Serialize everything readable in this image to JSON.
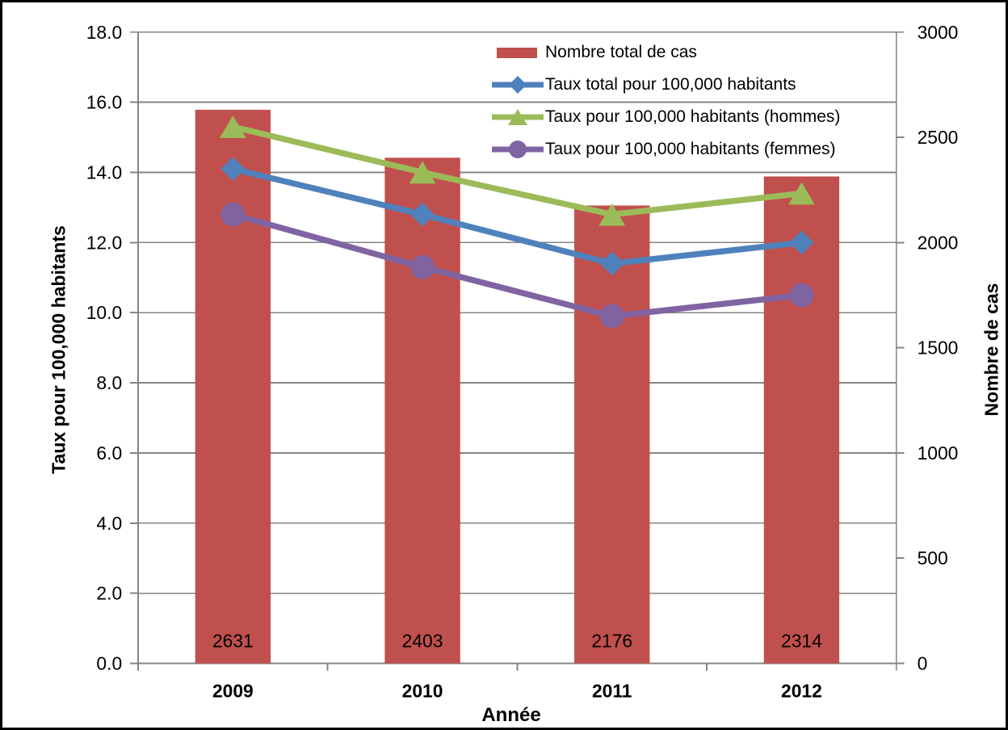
{
  "chart_data": {
    "type": "combo-bar-line",
    "categories": [
      "2009",
      "2010",
      "2011",
      "2012"
    ],
    "bar_series": {
      "name": "Nombre total de cas",
      "color": "#C0504D",
      "axis": "right",
      "values": [
        2631,
        2403,
        2176,
        2314
      ],
      "labels": [
        "2631",
        "2403",
        "2176",
        "2314"
      ]
    },
    "line_series": [
      {
        "name": "Taux total pour 100,000 habitants",
        "color": "#4F81BD",
        "marker": "diamond",
        "axis": "left",
        "values": [
          14.1,
          12.8,
          11.4,
          12.0
        ]
      },
      {
        "name": "Taux pour 100,000 habitants (hommes)",
        "color": "#9BBB59",
        "marker": "triangle",
        "axis": "left",
        "values": [
          15.3,
          14.0,
          12.8,
          13.4
        ]
      },
      {
        "name": "Taux pour 100,000 habitants (femmes)",
        "color": "#8064A2",
        "marker": "circle",
        "axis": "left",
        "values": [
          12.8,
          11.3,
          9.9,
          10.5
        ]
      }
    ],
    "axes": {
      "left": {
        "title": "Taux pour 100,000 habitants",
        "min": 0,
        "max": 18,
        "step": 2,
        "tick_labels": [
          "0.0",
          "2.0",
          "4.0",
          "6.0",
          "8.0",
          "10.0",
          "12.0",
          "14.0",
          "16.0",
          "18.0"
        ]
      },
      "right": {
        "title": "Nombre de cas",
        "min": 0,
        "max": 3000,
        "step": 500,
        "tick_labels": [
          "0",
          "500",
          "1000",
          "1500",
          "2000",
          "2500",
          "3000"
        ]
      },
      "x": {
        "title": "Année"
      }
    },
    "legend_position": "top-center",
    "grid": true,
    "colors": {
      "grid": "#848484",
      "axis": "#848484",
      "text": "#000000",
      "background": "#FFFFFF"
    }
  }
}
